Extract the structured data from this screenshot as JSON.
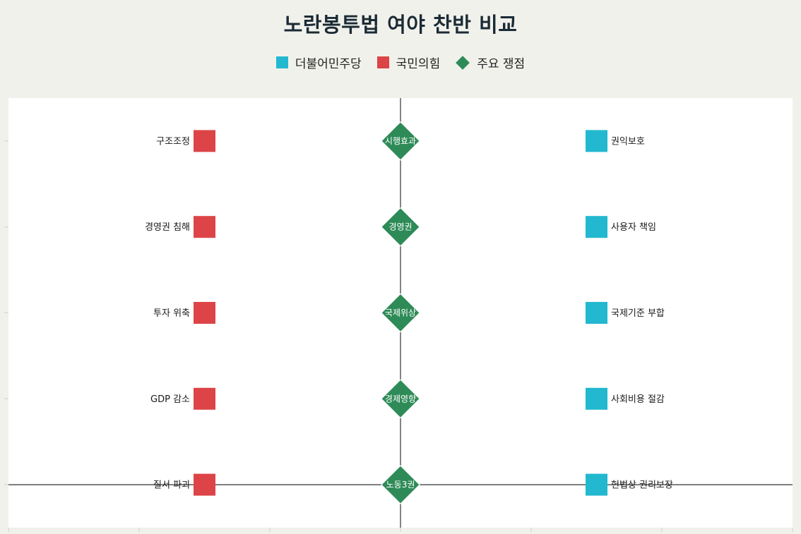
{
  "chart_data": {
    "type": "scatter",
    "title": "노란봉투법 여야 찬반 비교",
    "legend_position": "top-center",
    "grid": false,
    "colors": {
      "democratic": "#22b8cf",
      "ppp": "#dc4447",
      "issue": "#2e8b57",
      "background": "#f1f1ec",
      "plot_background": "#ffffff"
    },
    "legend": [
      {
        "name": "더불어민주당",
        "shape": "square",
        "color": "#22b8cf"
      },
      {
        "name": "국민의힘",
        "shape": "square",
        "color": "#dc4447"
      },
      {
        "name": "주요 쟁점",
        "shape": "diamond",
        "color": "#2e8b57"
      }
    ],
    "xlim": [
      -3,
      3
    ],
    "ylim": [
      0.5,
      5.5
    ],
    "series": [
      {
        "name": "국민의힘",
        "marker": "square",
        "color": "#dc4447",
        "points": [
          {
            "x": -1.5,
            "y": 5,
            "label": "구조조정"
          },
          {
            "x": -1.5,
            "y": 4,
            "label": "경영권 침해"
          },
          {
            "x": -1.5,
            "y": 3,
            "label": "투자 위축"
          },
          {
            "x": -1.5,
            "y": 2,
            "label": "GDP 감소"
          },
          {
            "x": -1.5,
            "y": 1,
            "label": "질서 파괴"
          }
        ]
      },
      {
        "name": "주요 쟁점",
        "marker": "diamond",
        "color": "#2e8b57",
        "points": [
          {
            "x": 0,
            "y": 5,
            "label": "시행효과"
          },
          {
            "x": 0,
            "y": 4,
            "label": "경영권"
          },
          {
            "x": 0,
            "y": 3,
            "label": "국제위상"
          },
          {
            "x": 0,
            "y": 2,
            "label": "경제영향"
          },
          {
            "x": 0,
            "y": 1,
            "label": "노동3권"
          }
        ]
      },
      {
        "name": "더불어민주당",
        "marker": "square",
        "color": "#22b8cf",
        "points": [
          {
            "x": 1.5,
            "y": 5,
            "label": "권익보호"
          },
          {
            "x": 1.5,
            "y": 4,
            "label": "사용자 책임"
          },
          {
            "x": 1.5,
            "y": 3,
            "label": "국제기준 부합"
          },
          {
            "x": 1.5,
            "y": 2,
            "label": "사회비용 절감"
          },
          {
            "x": 1.5,
            "y": 1,
            "label": "헌법상 권리보장"
          }
        ]
      }
    ]
  }
}
